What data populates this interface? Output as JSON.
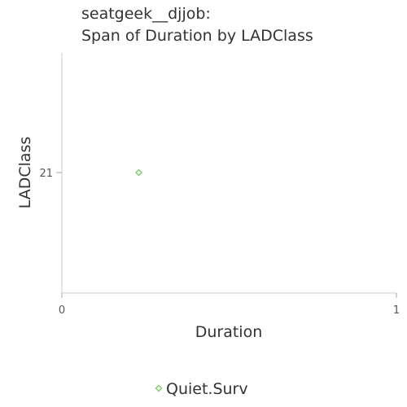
{
  "chart_data": {
    "type": "scatter",
    "title_lines": [
      "seatgeek__djjob:",
      "Span of Duration by LADClass"
    ],
    "xlabel": "Duration",
    "ylabel": "LADClass",
    "xlim": [
      0,
      1
    ],
    "x_ticks": [
      "0",
      "1"
    ],
    "y_categories": [
      "21"
    ],
    "grid": false,
    "legend_position": "bottom",
    "series": [
      {
        "name": "Quiet.Surv",
        "color": "#7dcf6f",
        "marker": "diamond",
        "points": [
          {
            "x": 0.23,
            "y": "21"
          }
        ]
      }
    ]
  }
}
